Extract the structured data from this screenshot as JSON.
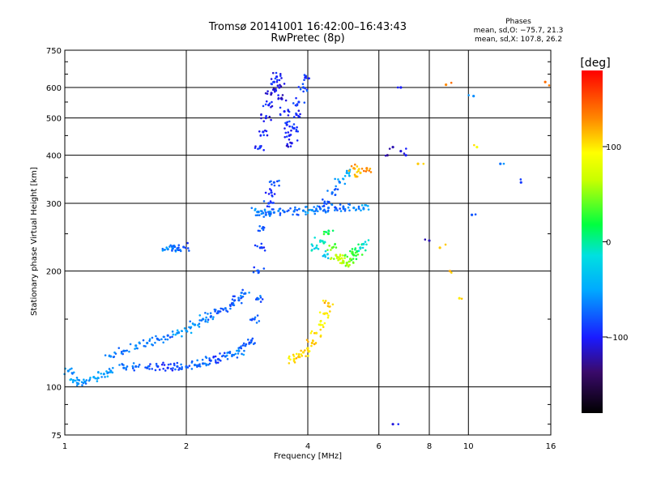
{
  "title_line1": "Tromsø 20141001 16:42:00–16:43:43",
  "title_line2": "RwPretec (8p)",
  "phases_header": "Phases",
  "phases_o": "mean, sd,O: −75.7, 21.3",
  "phases_x": "mean, sd,X: 107.8, 26.2",
  "colorbar": {
    "unit": "[deg]",
    "min": -180,
    "max": 180,
    "ticks": [
      {
        "value": 100,
        "label": "100"
      },
      {
        "value": 0,
        "label": "0"
      },
      {
        "value": -100,
        "label": "−100"
      }
    ]
  },
  "chart_data": {
    "type": "scatter",
    "title": "Tromsø 20141001 16:42:00–16:43:43  RwPretec (8p)",
    "xlabel": "Frequency [MHz]",
    "ylabel": "Stationary phase Virtual Height [km]",
    "xscale": "log",
    "yscale": "log",
    "xlim": [
      1,
      16
    ],
    "ylim": [
      75,
      750
    ],
    "grid": true,
    "x_ticks": [
      1,
      2,
      4,
      6,
      8,
      10,
      16
    ],
    "y_ticks": [
      75,
      100,
      200,
      300,
      400,
      500,
      600,
      750
    ],
    "colorbar_label": "[deg]",
    "color_range": [
      -180,
      180
    ],
    "clusters": [
      {
        "name": "low_trace",
        "points": [
          [
            1.02,
            110,
            -60
          ],
          [
            1.05,
            104,
            -50
          ],
          [
            1.08,
            102,
            -55
          ],
          [
            1.12,
            103,
            -60
          ],
          [
            1.18,
            106,
            -50
          ],
          [
            1.25,
            108,
            -55
          ],
          [
            1.3,
            110,
            -60
          ],
          [
            1.4,
            112,
            -70
          ],
          [
            1.5,
            113,
            -75
          ],
          [
            1.6,
            112,
            -80
          ],
          [
            1.7,
            113,
            -90
          ],
          [
            1.8,
            112,
            -95
          ],
          [
            1.9,
            113,
            -80
          ],
          [
            2.0,
            113,
            -75
          ],
          [
            2.1,
            114,
            -70
          ],
          [
            2.2,
            115,
            -75
          ],
          [
            2.3,
            117,
            -80
          ],
          [
            2.4,
            118,
            -85
          ],
          [
            2.5,
            120,
            -75
          ],
          [
            2.6,
            121,
            -70
          ],
          [
            2.7,
            124,
            -65
          ],
          [
            2.8,
            128,
            -75
          ],
          [
            2.9,
            132,
            -80
          ]
        ]
      },
      {
        "name": "upper_lower_band",
        "points": [
          [
            1.3,
            120,
            -60
          ],
          [
            1.4,
            124,
            -70
          ],
          [
            1.5,
            128,
            -60
          ],
          [
            1.6,
            130,
            -65
          ],
          [
            1.7,
            133,
            -70
          ],
          [
            1.8,
            136,
            -75
          ],
          [
            1.9,
            138,
            -60
          ],
          [
            2.0,
            140,
            -55
          ],
          [
            2.1,
            145,
            -60
          ],
          [
            2.2,
            150,
            -65
          ],
          [
            2.3,
            152,
            -70
          ],
          [
            2.4,
            157,
            -75
          ],
          [
            2.5,
            160,
            -70
          ],
          [
            2.6,
            165,
            -80
          ],
          [
            2.7,
            168,
            -75
          ],
          [
            2.8,
            175,
            -70
          ]
        ]
      },
      {
        "name": "isolated_patch",
        "points": [
          [
            1.8,
            228,
            -65
          ],
          [
            1.85,
            230,
            -60
          ],
          [
            1.9,
            229,
            -70
          ],
          [
            1.97,
            231,
            -80
          ]
        ]
      },
      {
        "name": "f_trace_rise",
        "points": [
          [
            2.95,
            150,
            -80
          ],
          [
            3.0,
            170,
            -75
          ],
          [
            3.02,
            200,
            -85
          ],
          [
            3.05,
            230,
            -90
          ],
          [
            3.1,
            260,
            -80
          ],
          [
            3.15,
            280,
            -70
          ],
          [
            3.2,
            300,
            -85
          ],
          [
            3.25,
            320,
            -90
          ],
          [
            3.3,
            340,
            -80
          ]
        ]
      },
      {
        "name": "high_patch",
        "points": [
          [
            3.05,
            420,
            -100
          ],
          [
            3.1,
            460,
            -95
          ],
          [
            3.15,
            500,
            -105
          ],
          [
            3.2,
            540,
            -100
          ],
          [
            3.25,
            580,
            -110
          ],
          [
            3.3,
            620,
            -95
          ],
          [
            3.35,
            640,
            -100
          ],
          [
            3.4,
            600,
            -105
          ],
          [
            3.45,
            560,
            -110
          ],
          [
            3.5,
            520,
            -100
          ],
          [
            3.55,
            480,
            -95
          ],
          [
            3.6,
            450,
            -100
          ],
          [
            3.65,
            430,
            -105
          ],
          [
            3.7,
            470,
            -95
          ],
          [
            3.75,
            510,
            -100
          ],
          [
            3.8,
            550,
            -90
          ],
          [
            3.9,
            600,
            -85
          ],
          [
            3.95,
            640,
            -95
          ]
        ]
      },
      {
        "name": "mid_layer_285",
        "points": [
          [
            3.0,
            285,
            -60
          ],
          [
            3.1,
            283,
            -65
          ],
          [
            3.3,
            284,
            -70
          ],
          [
            3.5,
            285,
            -75
          ],
          [
            3.7,
            286,
            -70
          ],
          [
            3.9,
            287,
            -65
          ],
          [
            4.1,
            288,
            -60
          ],
          [
            4.3,
            290,
            -65
          ],
          [
            4.5,
            292,
            -70
          ],
          [
            4.7,
            291,
            -75
          ],
          [
            4.9,
            293,
            -70
          ],
          [
            5.2,
            292,
            -60
          ],
          [
            5.5,
            290,
            -55
          ]
        ]
      },
      {
        "name": "x_trace_orange",
        "points": [
          [
            3.7,
            118,
            100
          ],
          [
            3.8,
            120,
            110
          ],
          [
            3.9,
            123,
            105
          ],
          [
            4.0,
            126,
            100
          ],
          [
            4.1,
            130,
            110
          ],
          [
            4.2,
            138,
            100
          ],
          [
            4.3,
            145,
            95
          ],
          [
            4.4,
            155,
            105
          ],
          [
            4.5,
            165,
            110
          ]
        ]
      },
      {
        "name": "f2_dense",
        "points": [
          [
            4.2,
            230,
            -20
          ],
          [
            4.3,
            240,
            -10
          ],
          [
            4.4,
            220,
            -30
          ],
          [
            4.5,
            250,
            20
          ],
          [
            4.6,
            230,
            40
          ],
          [
            4.7,
            220,
            60
          ],
          [
            4.8,
            215,
            70
          ],
          [
            4.9,
            212,
            60
          ],
          [
            5.0,
            210,
            50
          ],
          [
            5.1,
            215,
            40
          ],
          [
            5.2,
            220,
            30
          ],
          [
            5.3,
            225,
            20
          ],
          [
            5.4,
            230,
            0
          ],
          [
            5.5,
            235,
            -20
          ],
          [
            4.4,
            300,
            -80
          ],
          [
            4.6,
            320,
            -70
          ],
          [
            4.8,
            340,
            -60
          ],
          [
            5.0,
            360,
            -50
          ],
          [
            5.2,
            370,
            120
          ],
          [
            5.4,
            360,
            110
          ],
          [
            5.6,
            370,
            130
          ]
        ]
      },
      {
        "name": "scattered_right",
        "points": [
          [
            6.3,
            400,
            -130
          ],
          [
            6.5,
            420,
            -120
          ],
          [
            6.8,
            410,
            -110
          ],
          [
            7.0,
            400,
            -100
          ],
          [
            7.5,
            380,
            110
          ],
          [
            8.0,
            240,
            -120
          ],
          [
            8.5,
            230,
            110
          ],
          [
            9.0,
            200,
            120
          ],
          [
            9.5,
            170,
            100
          ],
          [
            10.2,
            280,
            -80
          ],
          [
            10.5,
            420,
            90
          ],
          [
            13.5,
            340,
            -90
          ],
          [
            15.5,
            620,
            140
          ],
          [
            6.8,
            600,
            -100
          ],
          [
            8.8,
            610,
            130
          ],
          [
            10.3,
            570,
            -60
          ],
          [
            12.0,
            380,
            -70
          ],
          [
            6.5,
            80,
            -110
          ]
        ]
      }
    ]
  }
}
